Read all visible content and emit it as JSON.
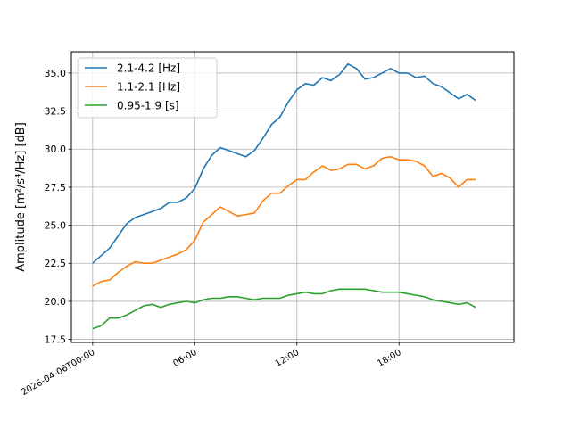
{
  "chart_data": {
    "type": "line",
    "xlabel": "",
    "ylabel": "Amplitude [m²/s⁴/Hz] [dB]",
    "ylim": [
      17.3,
      36.4
    ],
    "xlim": [
      "2026-04-05T22:45",
      "2026-04-07T00:45"
    ],
    "x_ticks": [
      "2026-04-06T00:00",
      "06:00",
      "12:00",
      "18:00"
    ],
    "y_ticks": [
      "17.5",
      "20.0",
      "22.5",
      "25.0",
      "27.5",
      "30.0",
      "32.5",
      "35.0"
    ],
    "grid": true,
    "legend_position": "upper-left",
    "x": [
      "2026-04-06T00:00",
      "2026-04-06T00:30",
      "2026-04-06T01:00",
      "2026-04-06T01:30",
      "2026-04-06T02:00",
      "2026-04-06T02:30",
      "2026-04-06T03:00",
      "2026-04-06T03:30",
      "2026-04-06T04:00",
      "2026-04-06T04:30",
      "2026-04-06T05:00",
      "2026-04-06T05:30",
      "2026-04-06T06:00",
      "2026-04-06T06:30",
      "2026-04-06T07:00",
      "2026-04-06T07:30",
      "2026-04-06T08:00",
      "2026-04-06T08:30",
      "2026-04-06T09:00",
      "2026-04-06T09:30",
      "2026-04-06T10:00",
      "2026-04-06T10:30",
      "2026-04-06T11:00",
      "2026-04-06T11:30",
      "2026-04-06T12:00",
      "2026-04-06T12:30",
      "2026-04-06T13:00",
      "2026-04-06T13:30",
      "2026-04-06T14:00",
      "2026-04-06T14:30",
      "2026-04-06T15:00",
      "2026-04-06T15:30",
      "2026-04-06T16:00",
      "2026-04-06T16:30",
      "2026-04-06T17:00",
      "2026-04-06T17:30",
      "2026-04-06T18:00",
      "2026-04-06T18:30",
      "2026-04-06T19:00",
      "2026-04-06T19:30",
      "2026-04-06T20:00",
      "2026-04-06T20:30",
      "2026-04-06T21:00",
      "2026-04-06T21:30",
      "2026-04-06T22:00",
      "2026-04-06T22:30"
    ],
    "series": [
      {
        "name": "2.1-4.2 [Hz]",
        "color": "#1f77b4",
        "values": [
          22.5,
          23.0,
          23.5,
          24.3,
          25.1,
          25.5,
          25.7,
          25.9,
          26.1,
          26.5,
          26.5,
          26.8,
          27.4,
          28.7,
          29.6,
          30.1,
          29.9,
          29.7,
          29.5,
          29.9,
          30.7,
          31.6,
          32.1,
          33.1,
          33.9,
          34.3,
          34.2,
          34.7,
          34.5,
          34.9,
          35.6,
          35.3,
          34.6,
          34.7,
          35.0,
          35.3,
          35.0,
          35.0,
          34.7,
          34.8,
          34.3,
          34.1,
          33.7,
          33.3,
          33.6,
          33.2
        ]
      },
      {
        "name": "1.1-2.1 [Hz]",
        "color": "#ff7f0e",
        "values": [
          21.0,
          21.3,
          21.4,
          21.9,
          22.3,
          22.6,
          22.5,
          22.5,
          22.7,
          22.9,
          23.1,
          23.4,
          24.0,
          25.2,
          25.7,
          26.2,
          25.9,
          25.6,
          25.7,
          25.8,
          26.6,
          27.1,
          27.1,
          27.6,
          28.0,
          28.0,
          28.5,
          28.9,
          28.6,
          28.7,
          29.0,
          29.0,
          28.7,
          28.9,
          29.4,
          29.5,
          29.3,
          29.3,
          29.2,
          28.9,
          28.2,
          28.4,
          28.1,
          27.5,
          28.0,
          28.0
        ]
      },
      {
        "name": "0.95-1.9 [s]",
        "color": "#2ca02c",
        "values": [
          18.2,
          18.4,
          18.9,
          18.9,
          19.1,
          19.4,
          19.7,
          19.8,
          19.6,
          19.8,
          19.9,
          20.0,
          19.9,
          20.1,
          20.2,
          20.2,
          20.3,
          20.3,
          20.2,
          20.1,
          20.2,
          20.2,
          20.2,
          20.4,
          20.5,
          20.6,
          20.5,
          20.5,
          20.7,
          20.8,
          20.8,
          20.8,
          20.8,
          20.7,
          20.6,
          20.6,
          20.6,
          20.5,
          20.4,
          20.3,
          20.1,
          20.0,
          19.9,
          19.8,
          19.9,
          19.6
        ]
      }
    ]
  }
}
